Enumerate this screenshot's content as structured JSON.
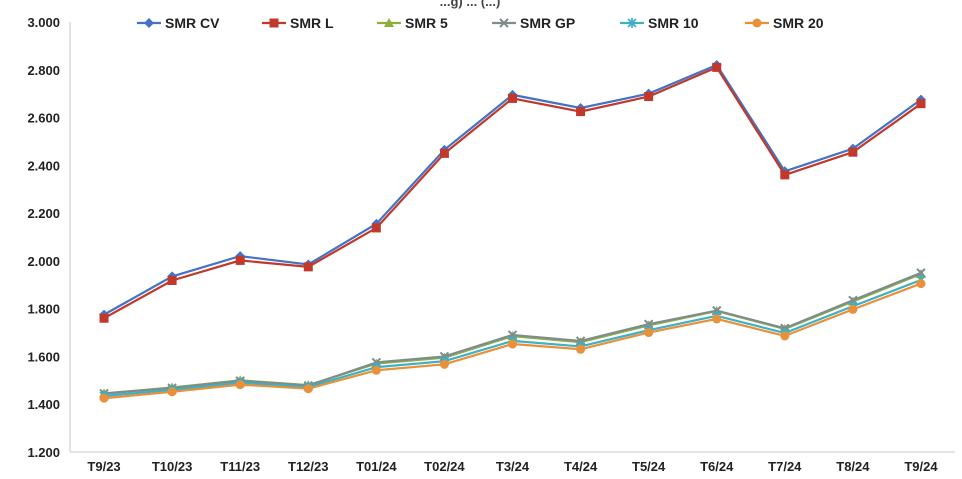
{
  "title_fragment": "...g) ... (...)",
  "chart_data": {
    "type": "line",
    "categories": [
      "T9/23",
      "T10/23",
      "T11/23",
      "T12/23",
      "T01/24",
      "T02/24",
      "T3/24",
      "T4/24",
      "T5/24",
      "T6/24",
      "T7/24",
      "T8/24",
      "T9/24"
    ],
    "ylim": [
      1200,
      3000
    ],
    "yticks": [
      "1.200",
      "1.400",
      "1.600",
      "1.800",
      "2.000",
      "2.200",
      "2.400",
      "2.600",
      "2.800",
      "3.000"
    ],
    "grid": false,
    "legend_position": "top",
    "series": [
      {
        "name": "SMR CV",
        "color": "#4472C4",
        "marker": "diamond",
        "values": [
          1775,
          1935,
          2020,
          1985,
          2155,
          2465,
          2695,
          2640,
          2700,
          2820,
          2375,
          2470,
          2675
        ]
      },
      {
        "name": "SMR L",
        "color": "#C0392B",
        "marker": "square",
        "values": [
          1760,
          1918,
          2002,
          1975,
          2138,
          2450,
          2680,
          2625,
          2688,
          2810,
          2360,
          2455,
          2658
        ]
      },
      {
        "name": "SMR 5",
        "color": "#8DB03C",
        "marker": "triangle",
        "values": [
          1445,
          1470,
          1500,
          1480,
          1570,
          1595,
          1685,
          1660,
          1730,
          1790,
          1715,
          1830,
          1945
        ]
      },
      {
        "name": "SMR GP",
        "color": "#7F8C8D",
        "marker": "cross",
        "values": [
          1445,
          1468,
          1498,
          1478,
          1575,
          1600,
          1690,
          1665,
          1735,
          1792,
          1718,
          1835,
          1950
        ]
      },
      {
        "name": "SMR 10",
        "color": "#3FB0C4",
        "marker": "star",
        "values": [
          1435,
          1460,
          1490,
          1472,
          1555,
          1580,
          1665,
          1642,
          1710,
          1770,
          1698,
          1810,
          1920
        ]
      },
      {
        "name": "SMR 20",
        "color": "#E8903A",
        "marker": "circle",
        "values": [
          1425,
          1452,
          1482,
          1465,
          1542,
          1567,
          1652,
          1630,
          1700,
          1757,
          1686,
          1797,
          1905
        ]
      }
    ]
  }
}
